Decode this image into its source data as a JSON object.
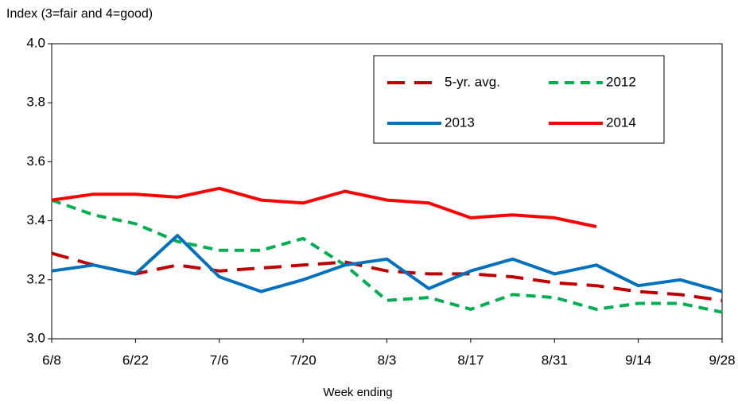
{
  "chart_data": {
    "type": "line",
    "y_label": "Index (3=fair and 4=good)",
    "x_label": "Week ending",
    "categories": [
      "6/8",
      null,
      "6/22",
      null,
      "7/6",
      null,
      "7/20",
      null,
      "8/3",
      null,
      "8/17",
      null,
      "8/31",
      null,
      "9/14",
      null,
      "9/28"
    ],
    "ylim": [
      3.0,
      4.0
    ],
    "yticks": [
      {
        "value": 3.0,
        "label": "3.0"
      },
      3.2,
      3.4,
      3.6,
      3.8,
      {
        "value": 4.0,
        "label": "4.0"
      }
    ],
    "grid": false,
    "series": [
      {
        "name": "5-yr. avg.",
        "color": "#c00000",
        "line_style": "long-dash",
        "values": [
          3.29,
          3.25,
          3.22,
          3.25,
          3.23,
          3.24,
          3.25,
          3.26,
          3.23,
          3.22,
          3.22,
          3.21,
          3.19,
          3.18,
          3.16,
          3.15,
          3.13
        ]
      },
      {
        "name": "2012",
        "color": "#00b050",
        "line_style": "dash",
        "values": [
          3.47,
          3.42,
          3.39,
          3.33,
          3.3,
          3.3,
          3.34,
          3.25,
          3.13,
          3.14,
          3.1,
          3.15,
          3.14,
          3.1,
          3.12,
          3.12,
          3.09
        ]
      },
      {
        "name": "2013",
        "color": "#0070c0",
        "line_style": "solid",
        "values": [
          3.23,
          3.25,
          3.22,
          3.35,
          3.21,
          3.16,
          3.2,
          3.25,
          3.27,
          3.17,
          3.23,
          3.27,
          3.22,
          3.25,
          3.18,
          3.2,
          3.16
        ]
      },
      {
        "name": "2014",
        "color": "#ff0000",
        "line_style": "solid",
        "values": [
          3.47,
          3.49,
          3.49,
          3.48,
          3.51,
          3.47,
          3.46,
          3.5,
          3.47,
          3.46,
          3.41,
          3.42,
          3.41,
          3.38,
          null,
          null,
          null
        ]
      }
    ]
  }
}
